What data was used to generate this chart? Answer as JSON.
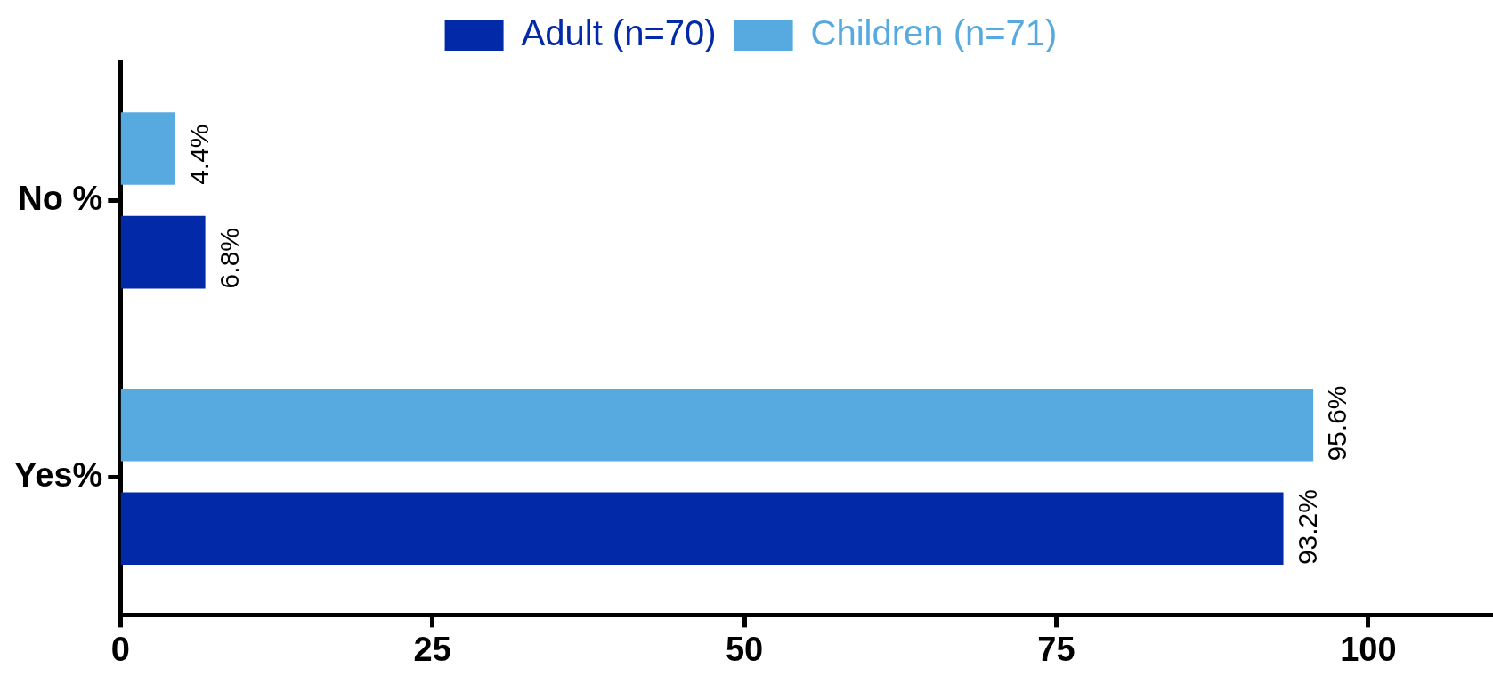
{
  "chart_data": {
    "type": "bar",
    "orientation": "horizontal",
    "categories": [
      "No %",
      "Yes%"
    ],
    "series": [
      {
        "name": "Adult (n=70)",
        "color": "#0229a8",
        "values": [
          6.8,
          93.2
        ],
        "value_labels": [
          "6.8%",
          "93.2%"
        ]
      },
      {
        "name": "Children (n=71)",
        "color": "#57aae0",
        "values": [
          4.4,
          95.6
        ],
        "value_labels": [
          "4.4%",
          "95.6%"
        ]
      }
    ],
    "xlim": [
      0,
      110
    ],
    "xticks": [
      0,
      25,
      50,
      75,
      100
    ],
    "grid": false,
    "legend": "top"
  }
}
